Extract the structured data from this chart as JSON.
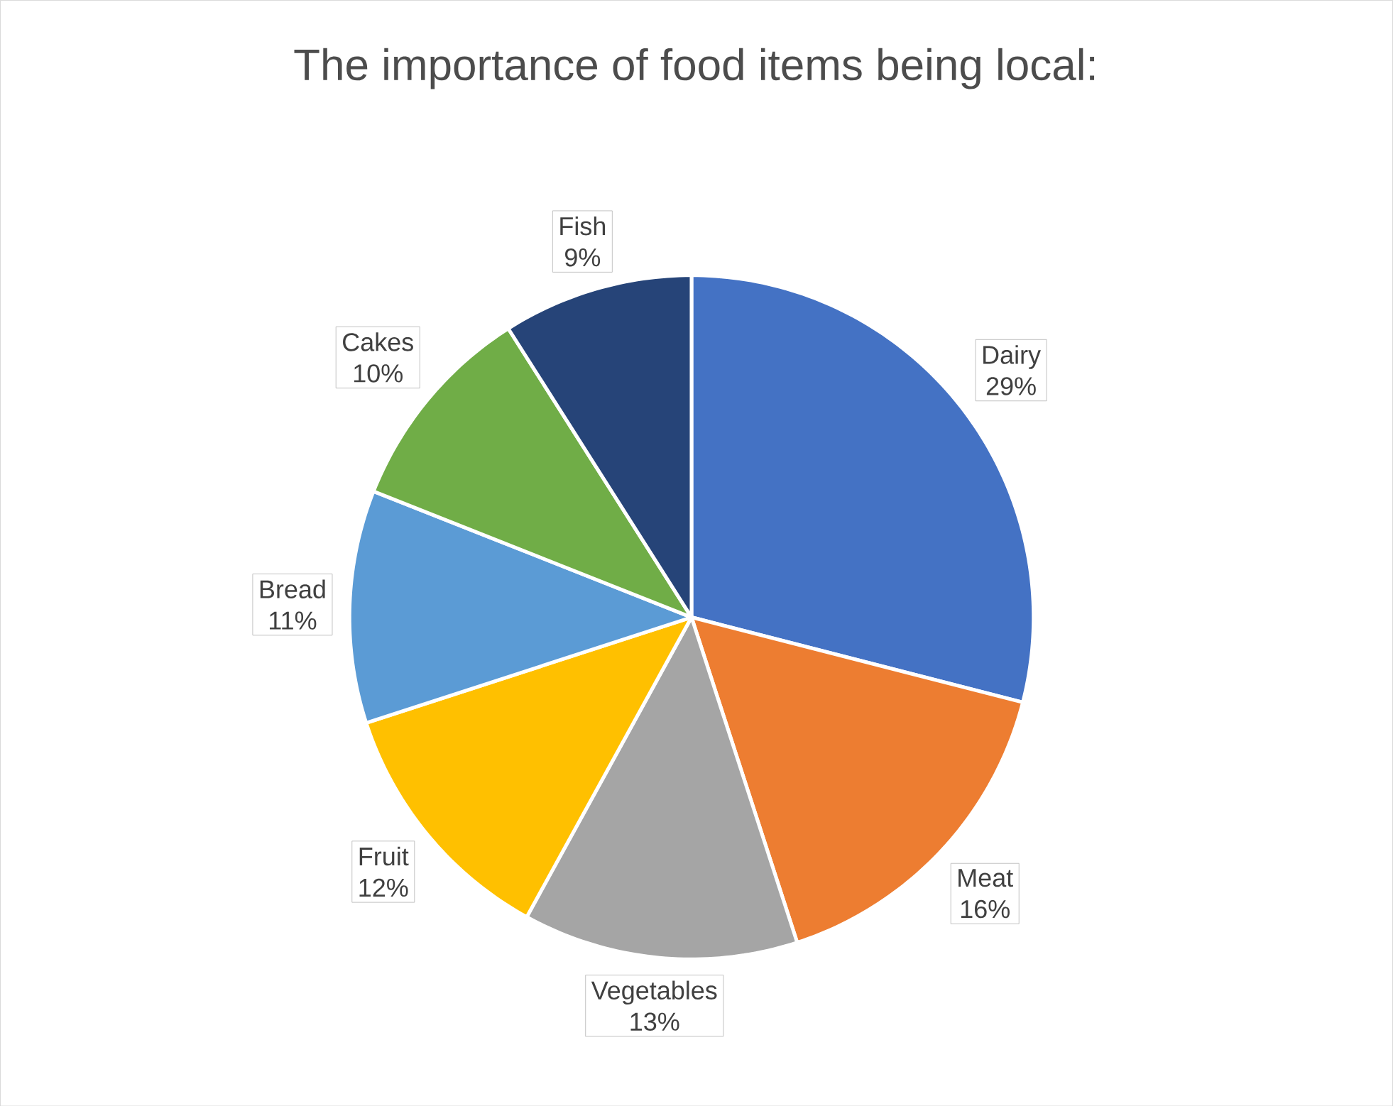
{
  "chart_data": {
    "type": "pie",
    "title": "The importance of food items being local:",
    "categories": [
      "Dairy",
      "Meat",
      "Vegetables",
      "Fruit",
      "Bread",
      "Cakes",
      "Fish"
    ],
    "values": [
      29,
      16,
      13,
      12,
      11,
      10,
      9
    ],
    "value_labels": [
      "29%",
      "16%",
      "13%",
      "12%",
      "11%",
      "10%",
      "9%"
    ],
    "colors": [
      "#4472c4",
      "#ed7d31",
      "#a5a5a5",
      "#ffc000",
      "#5b9bd5",
      "#70ad47",
      "#264478"
    ]
  }
}
